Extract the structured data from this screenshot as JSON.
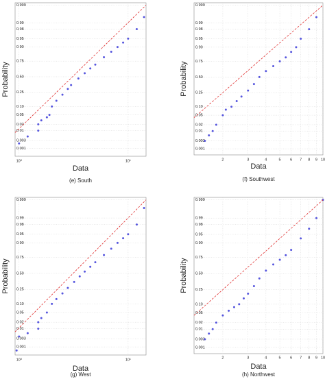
{
  "chart_data": [
    {
      "type": "scatter",
      "title": "(e)  South",
      "xlabel": "Data",
      "ylabel": "Probability",
      "xscale": "log",
      "grid": true,
      "xlim": [
        0.92,
        14.6
      ],
      "xticks": [
        {
          "value": 1,
          "label": "10⁰"
        },
        {
          "value": 10,
          "label": "10¹"
        }
      ],
      "ylim": [
        0.0003,
        0.9993
      ],
      "yticks": [
        0.001,
        0.003,
        0.01,
        0.02,
        0.05,
        {
          "value": 0.1,
          "label": "0.10"
        },
        0.25,
        {
          "value": 0.5,
          "label": "0.50"
        },
        0.75,
        {
          "value": 0.9,
          "label": "0.90"
        },
        0.95,
        0.98,
        0.99,
        0.999
      ],
      "series": [
        {
          "color": "#3a3ad8",
          "style": "points",
          "x": [
            1.0,
            1.2,
            1.5,
            1.5,
            1.6,
            1.8,
            1.9,
            2.0,
            2.2,
            2.5,
            2.8,
            3.0,
            3.5,
            4,
            4.5,
            5,
            6,
            7,
            8,
            9,
            10,
            12,
            14
          ],
          "values": [
            0.002,
            0.005,
            0.01,
            0.02,
            0.03,
            0.04,
            0.05,
            0.1,
            0.15,
            0.22,
            0.3,
            0.36,
            0.47,
            0.56,
            0.64,
            0.7,
            0.8,
            0.86,
            0.9,
            0.93,
            0.95,
            0.98,
            0.995
          ]
        },
        {
          "color": "#e03030",
          "style": "dashed",
          "x": [
            0.92,
            14.6
          ],
          "values": [
            0.008,
            0.999
          ]
        }
      ]
    },
    {
      "type": "scatter",
      "title": "(f)  Southwest",
      "xlabel": "Data",
      "ylabel": "Probability",
      "xscale": "log",
      "grid": true,
      "xlim": [
        1.26,
        10
      ],
      "xticks": [
        2,
        3,
        4,
        5,
        6,
        7,
        8,
        9,
        10
      ],
      "ylim": [
        0.0004,
        0.9993
      ],
      "yticks": [
        0.001,
        0.003,
        0.01,
        0.02,
        0.05,
        {
          "value": 0.1,
          "label": "0.10"
        },
        0.25,
        {
          "value": 0.5,
          "label": "0.50"
        },
        0.75,
        {
          "value": 0.9,
          "label": "0.90"
        },
        0.95,
        0.98,
        0.99,
        0.999
      ],
      "series": [
        {
          "color": "#3a3ad8",
          "style": "points",
          "x": [
            1.5,
            1.6,
            1.7,
            1.8,
            2.0,
            2.1,
            2.3,
            2.5,
            2.7,
            3.0,
            3.3,
            3.6,
            4,
            4.5,
            5,
            5.5,
            6,
            6.5,
            7,
            8,
            9
          ],
          "values": [
            0.003,
            0.006,
            0.01,
            0.02,
            0.05,
            0.08,
            0.1,
            0.15,
            0.2,
            0.28,
            0.38,
            0.5,
            0.6,
            0.68,
            0.75,
            0.8,
            0.86,
            0.9,
            0.95,
            0.98,
            0.995
          ]
        },
        {
          "color": "#e03030",
          "style": "dashed",
          "x": [
            1.26,
            10
          ],
          "values": [
            0.04,
            0.999
          ]
        }
      ]
    },
    {
      "type": "scatter",
      "title": "(g)  West",
      "xlabel": "Data",
      "ylabel": "Probability",
      "xscale": "log",
      "grid": true,
      "xlim": [
        0.92,
        14.6
      ],
      "xticks": [
        {
          "value": 1,
          "label": "10⁰"
        },
        {
          "value": 10,
          "label": "10¹"
        }
      ],
      "ylim": [
        0.0003,
        0.9993
      ],
      "yticks": [
        0.001,
        0.003,
        0.01,
        0.02,
        0.05,
        {
          "value": 0.1,
          "label": "0.10"
        },
        0.25,
        {
          "value": 0.5,
          "label": "0.50"
        },
        0.75,
        {
          "value": 0.9,
          "label": "0.90"
        },
        0.95,
        0.98,
        0.99,
        0.999
      ],
      "series": [
        {
          "color": "#3a3ad8",
          "style": "points",
          "x": [
            0.95,
            1.0,
            1.2,
            1.5,
            1.5,
            1.6,
            1.8,
            2.0,
            2.2,
            2.5,
            2.8,
            3.2,
            3.6,
            4,
            4.5,
            5,
            6,
            7,
            8,
            9,
            10,
            12,
            14
          ],
          "values": [
            0.0006,
            0.004,
            0.006,
            0.01,
            0.02,
            0.03,
            0.05,
            0.1,
            0.14,
            0.2,
            0.27,
            0.36,
            0.45,
            0.53,
            0.61,
            0.68,
            0.78,
            0.85,
            0.9,
            0.93,
            0.95,
            0.98,
            0.997
          ]
        },
        {
          "color": "#e03030",
          "style": "dashed",
          "x": [
            0.92,
            14.6
          ],
          "values": [
            0.007,
            0.999
          ]
        }
      ]
    },
    {
      "type": "scatter",
      "title": "(h)  Northwest",
      "xlabel": "Data",
      "ylabel": "Probability",
      "xscale": "log",
      "grid": true,
      "xlim": [
        1.26,
        10
      ],
      "xticks": [
        2,
        3,
        4,
        5,
        6,
        7,
        8,
        9,
        10
      ],
      "ylim": [
        0.0004,
        0.9993
      ],
      "yticks": [
        0.001,
        0.003,
        0.01,
        0.02,
        0.05,
        {
          "value": 0.1,
          "label": "0.10"
        },
        0.25,
        {
          "value": 0.5,
          "label": "0.50"
        },
        0.75,
        {
          "value": 0.9,
          "label": "0.90"
        },
        0.95,
        0.98,
        0.99,
        0.999
      ],
      "series": [
        {
          "color": "#3a3ad8",
          "style": "points",
          "x": [
            1.5,
            1.6,
            1.7,
            1.8,
            2.0,
            2.2,
            2.4,
            2.6,
            2.8,
            3.0,
            3.3,
            3.6,
            4,
            4.5,
            5,
            5.5,
            6,
            7,
            8,
            9,
            10
          ],
          "values": [
            0.003,
            0.006,
            0.01,
            0.02,
            0.04,
            0.06,
            0.08,
            0.1,
            0.15,
            0.2,
            0.3,
            0.42,
            0.55,
            0.65,
            0.72,
            0.78,
            0.84,
            0.93,
            0.97,
            0.99,
            0.999
          ]
        },
        {
          "color": "#e03030",
          "style": "dashed",
          "x": [
            1.26,
            10
          ],
          "values": [
            0.04,
            0.999
          ]
        }
      ]
    }
  ]
}
